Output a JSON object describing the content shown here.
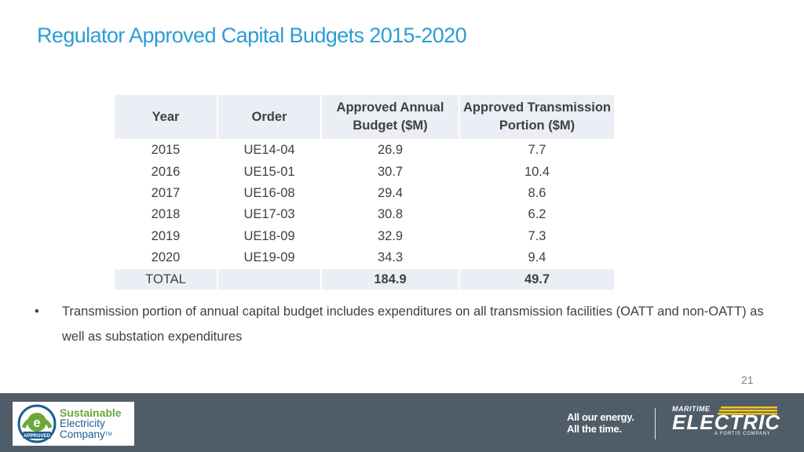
{
  "slide": {
    "title": "Regulator Approved Capital Budgets 2015-2020",
    "page_number": "21"
  },
  "table": {
    "headers": [
      "Year",
      "Order",
      "Approved Annual Budget ($M)",
      "Approved Transmission Portion ($M)"
    ],
    "header_lines": [
      [
        "Year"
      ],
      [
        "Order"
      ],
      [
        "Approved Annual",
        "Budget ($M)"
      ],
      [
        "Approved Transmission",
        "Portion ($M)"
      ]
    ],
    "rows": [
      [
        "2015",
        "UE14-04",
        "26.9",
        "7.7"
      ],
      [
        "2016",
        "UE15-01",
        "30.7",
        "10.4"
      ],
      [
        "2017",
        "UE16-08",
        "29.4",
        "8.6"
      ],
      [
        "2018",
        "UE17-03",
        "30.8",
        "6.2"
      ],
      [
        "2019",
        "UE18-09",
        "32.9",
        "7.3"
      ],
      [
        "2020",
        "UE19-09",
        "34.3",
        "9.4"
      ]
    ],
    "total": {
      "label": "TOTAL",
      "order": "",
      "budget": "184.9",
      "transmission": "49.7"
    }
  },
  "bullets": [
    {
      "marker": "•",
      "text": "Transmission portion of annual capital budget includes expenditures on all transmission facilities (OATT and non-OATT) as well as substation expenditures"
    }
  ],
  "footer": {
    "sec_logo": {
      "line1": "Sustainable",
      "line2": "Electricity",
      "line3": "Company",
      "tm": "TM",
      "badge_text": "APPROVED",
      "badge_letter": "e"
    },
    "tagline_line1": "All our energy.",
    "tagline_line2": "All the time.",
    "brand_small": "MARITIME",
    "brand_big": "ELECTRIC",
    "brand_sub": "A FORTIS COMPANY"
  },
  "colors": {
    "title": "#2e9cd6",
    "table_header_bg": "#eceef5",
    "footer_bg": "#4f5d69",
    "sec_green": "#6aa83a",
    "sec_blue": "#1e5e8e",
    "brand_yellow": "#f5c518"
  }
}
